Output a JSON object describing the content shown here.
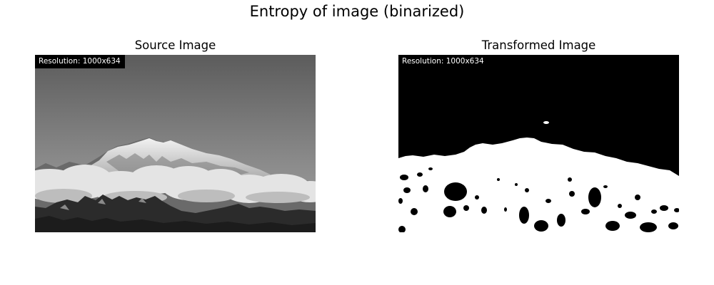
{
  "figure": {
    "title": "Entropy of image (binarized)"
  },
  "panels": [
    {
      "title": "Source Image",
      "resolution_label": "Resolution: 1000x634"
    },
    {
      "title": "Transformed Image",
      "resolution_label": "Resolution: 1000x634"
    }
  ],
  "colors": {
    "background": "#ffffff",
    "badge_background": "#000000",
    "badge_text": "#ffffff",
    "binary_dark": "#000000",
    "binary_light": "#ffffff"
  }
}
